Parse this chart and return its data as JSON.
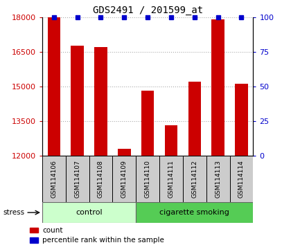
{
  "title": "GDS2491 / 201599_at",
  "samples": [
    "GSM114106",
    "GSM114107",
    "GSM114108",
    "GSM114109",
    "GSM114110",
    "GSM114111",
    "GSM114112",
    "GSM114113",
    "GSM114114"
  ],
  "counts": [
    18000,
    16750,
    16700,
    12300,
    14800,
    13300,
    15200,
    17900,
    15100
  ],
  "percentile_ranks": [
    100,
    100,
    100,
    100,
    100,
    100,
    100,
    100,
    100
  ],
  "groups": [
    {
      "label": "control",
      "start": 0,
      "end": 4,
      "color": "#ccffcc"
    },
    {
      "label": "cigarette smoking",
      "start": 4,
      "end": 9,
      "color": "#55cc55"
    }
  ],
  "bar_color": "#cc0000",
  "pct_color": "#0000cc",
  "ylim_left": [
    12000,
    18000
  ],
  "ylim_right": [
    0,
    100
  ],
  "yticks_left": [
    12000,
    13500,
    15000,
    16500,
    18000
  ],
  "yticks_right": [
    0,
    25,
    50,
    75,
    100
  ],
  "left_tick_color": "#cc0000",
  "right_tick_color": "#0000cc",
  "background_color": "#ffffff",
  "stress_label": "stress",
  "legend_count_label": "count",
  "legend_pct_label": "percentile rank within the sample",
  "label_box_color": "#cccccc",
  "bar_width": 0.55
}
